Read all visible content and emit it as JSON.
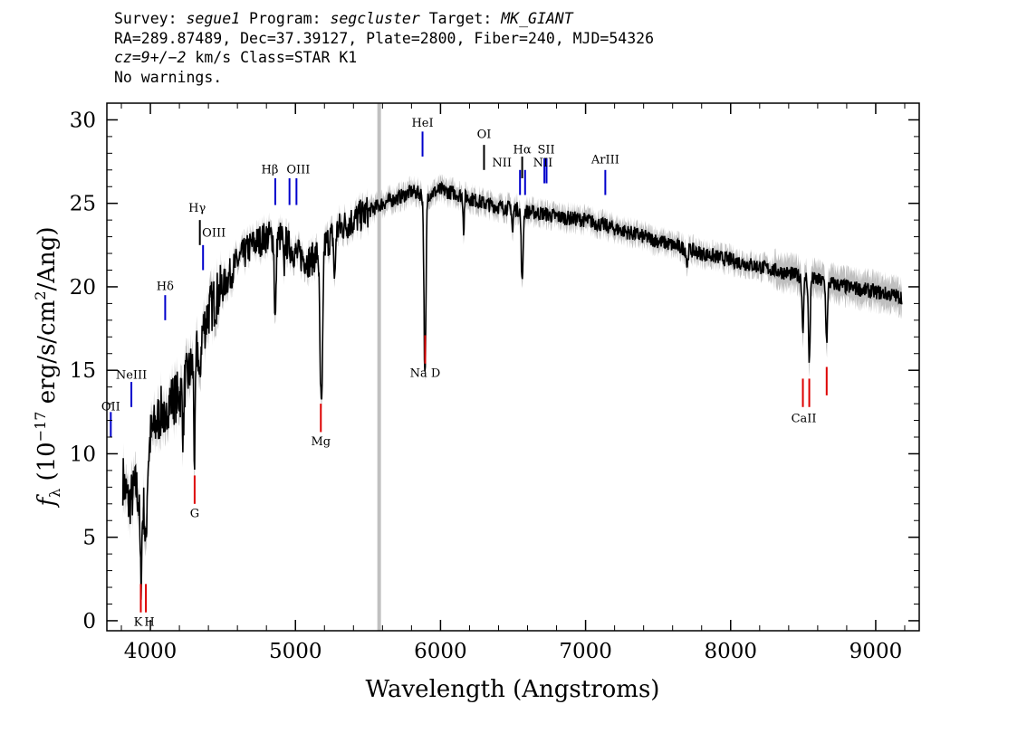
{
  "header": {
    "line1": {
      "survey_label": "Survey:",
      "survey": "segue1",
      "program_label": " Program:",
      "program": "segcluster",
      "target_label": " Target:",
      "target": "MK_GIANT"
    },
    "line2": "RA=289.87489, Dec=37.39127, Plate=2800, Fiber=240, MJD=54326",
    "line3": {
      "cz_label": "cz",
      "cz_value": "=9+/−2",
      "cz_rest": " km/s Class=STAR K1"
    },
    "line4": "No warnings."
  },
  "colors": {
    "spectrum": "#000000",
    "error_band": "#bfbfbf",
    "emission_line": "#0000cc",
    "absorption_line": "#dd0000",
    "sky_line": "#c0c0c0",
    "other_line": "#000000"
  },
  "chart_data": {
    "type": "line",
    "xlabel": "Wavelength (Angstroms)",
    "ylabel": "f_λ (10^-17 erg/s/cm^2/Ang)",
    "xlim": [
      3700,
      9300
    ],
    "ylim": [
      -0.6,
      31
    ],
    "x_ticks": [
      4000,
      5000,
      6000,
      7000,
      8000,
      9000
    ],
    "y_ticks": [
      0,
      5,
      10,
      15,
      20,
      25,
      30
    ],
    "x_tick_labels": [
      "4000",
      "5000",
      "6000",
      "7000",
      "8000",
      "9000"
    ],
    "y_tick_labels": [
      "0",
      "5",
      "10",
      "15",
      "20",
      "25",
      "30"
    ],
    "sky_line_wavelength": 5577,
    "continuum": [
      [
        3810,
        8.5
      ],
      [
        3850,
        7.0
      ],
      [
        3900,
        8.0
      ],
      [
        3950,
        6.5
      ],
      [
        4000,
        11.0
      ],
      [
        4100,
        13.0
      ],
      [
        4200,
        13.5
      ],
      [
        4300,
        15.5
      ],
      [
        4400,
        18.5
      ],
      [
        4500,
        20.0
      ],
      [
        4600,
        21.5
      ],
      [
        4700,
        22.5
      ],
      [
        4800,
        23.0
      ],
      [
        4900,
        23.0
      ],
      [
        5000,
        22.0
      ],
      [
        5100,
        21.5
      ],
      [
        5200,
        22.5
      ],
      [
        5300,
        23.5
      ],
      [
        5400,
        24.0
      ],
      [
        5500,
        24.5
      ],
      [
        5600,
        25.0
      ],
      [
        5700,
        25.3
      ],
      [
        5800,
        25.7
      ],
      [
        5900,
        25.5
      ],
      [
        6000,
        25.8
      ],
      [
        6100,
        25.6
      ],
      [
        6200,
        25.3
      ],
      [
        6300,
        25.0
      ],
      [
        6400,
        24.8
      ],
      [
        6500,
        24.7
      ],
      [
        6600,
        24.5
      ],
      [
        6700,
        24.4
      ],
      [
        6800,
        24.2
      ],
      [
        7000,
        24.0
      ],
      [
        7200,
        23.5
      ],
      [
        7400,
        23.0
      ],
      [
        7600,
        22.5
      ],
      [
        7800,
        22.0
      ],
      [
        8000,
        21.6
      ],
      [
        8200,
        21.2
      ],
      [
        8400,
        20.8
      ],
      [
        8600,
        20.4
      ],
      [
        8800,
        20.0
      ],
      [
        9000,
        19.7
      ],
      [
        9180,
        19.4
      ]
    ],
    "absorption_features": [
      {
        "w": 3934,
        "depth": 4.5,
        "width": 6
      },
      {
        "w": 3969,
        "depth": 4.0,
        "width": 6
      },
      {
        "w": 4102,
        "depth": 3.0,
        "width": 5
      },
      {
        "w": 4226,
        "depth": 3.0,
        "width": 4
      },
      {
        "w": 4305,
        "depth": 6.0,
        "width": 5
      },
      {
        "w": 4340,
        "depth": 3.0,
        "width": 5
      },
      {
        "w": 4861,
        "depth": 5.0,
        "width": 6
      },
      {
        "w": 4920,
        "depth": 2.0,
        "width": 4
      },
      {
        "w": 5172,
        "depth": 6.5,
        "width": 6
      },
      {
        "w": 5183,
        "depth": 8.0,
        "width": 6
      },
      {
        "w": 5270,
        "depth": 3.0,
        "width": 5
      },
      {
        "w": 5890,
        "depth": 6.5,
        "width": 6
      },
      {
        "w": 5896,
        "depth": 6.0,
        "width": 6
      },
      {
        "w": 6160,
        "depth": 2.0,
        "width": 4
      },
      {
        "w": 6497,
        "depth": 1.5,
        "width": 4
      },
      {
        "w": 6563,
        "depth": 4.5,
        "width": 6
      },
      {
        "w": 7700,
        "depth": 1.0,
        "width": 5
      },
      {
        "w": 8498,
        "depth": 3.0,
        "width": 6
      },
      {
        "w": 8542,
        "depth": 5.0,
        "width": 6
      },
      {
        "w": 8662,
        "depth": 3.5,
        "width": 6
      }
    ],
    "line_markers": [
      {
        "label": "OII",
        "w": 3727,
        "kind": "emission",
        "y1": 11.0,
        "y2": 12.5,
        "text_y": 12.6,
        "text_dx": 0
      },
      {
        "label": "NeIII",
        "w": 3869,
        "kind": "emission",
        "y1": 12.8,
        "y2": 14.3,
        "text_y": 14.5,
        "text_dx": 0
      },
      {
        "label": "Hδ",
        "w": 4102,
        "kind": "emission",
        "y1": 18.0,
        "y2": 19.5,
        "text_y": 19.8,
        "text_dx": 0
      },
      {
        "label": "Hγ",
        "w": 4341,
        "kind": "other",
        "y1": 22.5,
        "y2": 24.0,
        "text_y": 24.5,
        "text_dx": -3
      },
      {
        "label": "OIII",
        "w": 4363,
        "kind": "emission",
        "y1": 21.0,
        "y2": 22.5,
        "text_y": 23.0,
        "text_dx": 12
      },
      {
        "label": "Hβ",
        "w": 4861,
        "kind": "emission",
        "y1": 24.9,
        "y2": 26.5,
        "text_y": 26.8,
        "text_dx": -6
      },
      {
        "label": "OIII",
        "w": 4959,
        "kind": "emission",
        "y1": 24.9,
        "y2": 26.5,
        "text_y": 0,
        "text_dx": 0
      },
      {
        "label": "OIII",
        "w": 5007,
        "kind": "emission",
        "y1": 24.9,
        "y2": 26.5,
        "text_y": 26.8,
        "text_dx": 2
      },
      {
        "label": "HeI",
        "w": 5876,
        "kind": "emission",
        "y1": 27.8,
        "y2": 29.3,
        "text_y": 29.6,
        "text_dx": 0
      },
      {
        "label": "OI",
        "w": 6300,
        "kind": "other",
        "y1": 27.0,
        "y2": 28.5,
        "text_y": 28.9,
        "text_dx": 0
      },
      {
        "label": "NII",
        "w": 6548,
        "kind": "emission",
        "y1": 25.5,
        "y2": 27.0,
        "text_y": 27.2,
        "text_dx": -20
      },
      {
        "label": "Hα",
        "w": 6563,
        "kind": "other",
        "y1": 26.5,
        "y2": 27.8,
        "text_y": 28.0,
        "text_dx": 0
      },
      {
        "label": "NII",
        "w": 6583,
        "kind": "emission",
        "y1": 25.5,
        "y2": 27.0,
        "text_y": 0,
        "text_dx": 0
      },
      {
        "label": "SII",
        "w": 6716,
        "kind": "emission",
        "y1": 26.2,
        "y2": 27.7,
        "text_y": 28.0,
        "text_dx": 2
      },
      {
        "label": "NII",
        "w": 6731,
        "kind": "emission",
        "y1": 26.2,
        "y2": 27.7,
        "text_y": 27.2,
        "text_dx": -4
      },
      {
        "label": "ArIII",
        "w": 7136,
        "kind": "emission",
        "y1": 25.5,
        "y2": 27.0,
        "text_y": 27.4,
        "text_dx": 0
      },
      {
        "label": "K",
        "w": 3934,
        "kind": "absorption",
        "y1": 0.5,
        "y2": 2.2,
        "text_y": -0.3,
        "text_dx": -3
      },
      {
        "label": "H",
        "w": 3969,
        "kind": "absorption",
        "y1": 0.5,
        "y2": 2.2,
        "text_y": -0.3,
        "text_dx": 4
      },
      {
        "label": "G",
        "w": 4305,
        "kind": "absorption",
        "y1": 7.0,
        "y2": 8.7,
        "text_y": 6.2,
        "text_dx": 0
      },
      {
        "label": "Mg",
        "w": 5175,
        "kind": "absorption",
        "y1": 11.3,
        "y2": 13.0,
        "text_y": 10.5,
        "text_dx": 0
      },
      {
        "label": "Na D",
        "w": 5894,
        "kind": "absorption",
        "y1": 15.4,
        "y2": 17.1,
        "text_y": 14.6,
        "text_dx": 0
      },
      {
        "label": "CaII",
        "w": 8498,
        "kind": "absorption",
        "y1": 12.8,
        "y2": 14.5,
        "text_y": 0,
        "text_dx": 0
      },
      {
        "label": "CaII",
        "w": 8542,
        "kind": "absorption",
        "y1": 12.8,
        "y2": 14.5,
        "text_y": 11.9,
        "text_dx": -6
      },
      {
        "label": "CaII",
        "w": 8662,
        "kind": "absorption",
        "y1": 13.5,
        "y2": 15.2,
        "text_y": 0,
        "text_dx": 0
      }
    ]
  }
}
